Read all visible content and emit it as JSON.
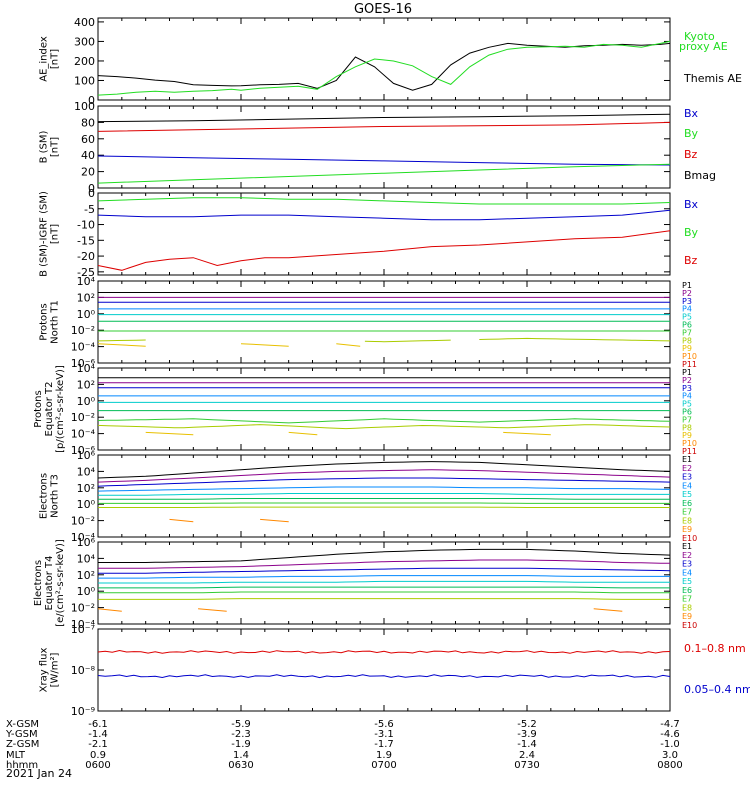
{
  "title": "GOES-16",
  "date_label": "2021 Jan 24",
  "colors": {
    "black": "#000000",
    "green": "#22dd22",
    "blue": "#0000cc",
    "red": "#dd0000",
    "P": [
      "#000000",
      "#8b008b",
      "#0000cc",
      "#0088ff",
      "#00cccc",
      "#00bb55",
      "#33cc33",
      "#aacc00",
      "#e8c000",
      "#ff8800",
      "#cc0000"
    ],
    "E": [
      "#000000",
      "#8b008b",
      "#0000cc",
      "#0088ff",
      "#00cccc",
      "#00bb55",
      "#33cc33",
      "#aacc00",
      "#ff8800",
      "#cc0000"
    ]
  },
  "ephemeris": {
    "row_labels": [
      "X-GSM",
      "Y-GSM",
      "Z-GSM",
      "MLT",
      "hhmm"
    ],
    "columns": [
      [
        "-6.1",
        "-1.4",
        "-2.1",
        "0.9",
        "0600"
      ],
      [
        "-5.9",
        "-2.3",
        "-1.9",
        "1.4",
        "0630"
      ],
      [
        "-5.6",
        "-3.1",
        "-1.7",
        "1.9",
        "0700"
      ],
      [
        "-5.2",
        "-3.9",
        "-1.4",
        "2.4",
        "0730"
      ],
      [
        "-4.7",
        "-4.6",
        "-1.0",
        "3.0",
        "0800"
      ]
    ]
  },
  "chart_data": [
    {
      "type": "line",
      "panel": "ae",
      "ylabel": [
        "AE_index",
        "[nT]"
      ],
      "ylim": [
        0,
        420
      ],
      "yticks": [
        "0",
        "100",
        "200",
        "300",
        "400"
      ],
      "ytick_values": [
        0,
        100,
        200,
        300,
        400
      ],
      "series": [
        {
          "name": "Themis AE",
          "color": "#000000",
          "x": [
            0,
            4,
            8,
            12,
            16,
            20,
            24,
            28,
            30,
            34,
            38,
            42,
            46,
            50,
            54,
            58,
            62,
            66,
            70,
            74,
            78,
            82,
            86,
            90,
            94,
            98,
            102,
            106,
            110,
            114,
            118,
            120
          ],
          "y": [
            125,
            120,
            112,
            102,
            95,
            78,
            75,
            72,
            73,
            78,
            80,
            85,
            60,
            100,
            220,
            170,
            85,
            50,
            80,
            180,
            240,
            270,
            290,
            280,
            275,
            270,
            278,
            280,
            285,
            280,
            285,
            290
          ]
        },
        {
          "name": "Kyoto proxy AE",
          "color": "#22dd22",
          "x": [
            0,
            4,
            8,
            12,
            16,
            20,
            24,
            28,
            30,
            34,
            38,
            42,
            46,
            50,
            54,
            58,
            62,
            66,
            70,
            74,
            78,
            82,
            86,
            90,
            94,
            98,
            102,
            106,
            110,
            114,
            118,
            120
          ],
          "y": [
            25,
            30,
            40,
            45,
            40,
            45,
            48,
            55,
            50,
            60,
            65,
            70,
            55,
            120,
            170,
            210,
            200,
            175,
            120,
            80,
            170,
            230,
            260,
            270,
            272,
            275,
            270,
            285,
            280,
            270,
            290,
            300
          ]
        }
      ]
    },
    {
      "type": "line",
      "panel": "bsm",
      "ylabel": [
        "B (SM)",
        "[nT]"
      ],
      "ylim": [
        0,
        100
      ],
      "yticks": [
        "0",
        "20",
        "40",
        "60",
        "80",
        "100"
      ],
      "ytick_values": [
        0,
        20,
        40,
        60,
        80,
        100
      ],
      "series": [
        {
          "name": "Bx",
          "color": "#0000cc",
          "x": [
            0,
            20,
            40,
            60,
            80,
            100,
            120
          ],
          "y": [
            39,
            37,
            35,
            33,
            31,
            29,
            28
          ]
        },
        {
          "name": "By",
          "color": "#22dd22",
          "x": [
            0,
            20,
            40,
            60,
            80,
            100,
            120
          ],
          "y": [
            6,
            10,
            14,
            18,
            22,
            26,
            29
          ]
        },
        {
          "name": "Bz",
          "color": "#dd0000",
          "x": [
            0,
            20,
            40,
            60,
            80,
            100,
            120
          ],
          "y": [
            69,
            71,
            73,
            75,
            76,
            77,
            80
          ]
        },
        {
          "name": "Bmag",
          "color": "#000000",
          "x": [
            0,
            20,
            40,
            60,
            80,
            100,
            120
          ],
          "y": [
            81,
            82,
            84,
            86,
            87,
            88,
            90
          ]
        }
      ]
    },
    {
      "type": "line",
      "panel": "bigrf",
      "ylabel": [
        "B (SM)-IGRF (SM)",
        "[nT]"
      ],
      "ylim": [
        -26,
        0
      ],
      "yticks": [
        "-25",
        "-20",
        "-15",
        "-10",
        "-5",
        "0"
      ],
      "ytick_values": [
        -25,
        -20,
        -15,
        -10,
        -5,
        0
      ],
      "series": [
        {
          "name": "Bx",
          "color": "#0000cc",
          "x": [
            0,
            10,
            20,
            30,
            40,
            50,
            60,
            70,
            80,
            90,
            100,
            110,
            120
          ],
          "y": [
            -7,
            -7.5,
            -7.5,
            -7,
            -7,
            -7.5,
            -8,
            -8.5,
            -8.5,
            -8,
            -7.5,
            -7,
            -5.5
          ]
        },
        {
          "name": "By",
          "color": "#22dd22",
          "x": [
            0,
            10,
            20,
            30,
            40,
            50,
            60,
            70,
            80,
            90,
            100,
            110,
            120
          ],
          "y": [
            -2.5,
            -2,
            -1.5,
            -1.5,
            -2,
            -2,
            -2.5,
            -3,
            -3.5,
            -3.5,
            -3.5,
            -3.5,
            -3
          ]
        },
        {
          "name": "Bz",
          "color": "#dd0000",
          "x": [
            0,
            5,
            10,
            15,
            20,
            25,
            30,
            35,
            40,
            50,
            60,
            70,
            80,
            90,
            100,
            110,
            120
          ],
          "y": [
            -23,
            -24.5,
            -22,
            -21,
            -20.5,
            -23,
            -21.5,
            -20.5,
            -20.5,
            -19.5,
            -18.5,
            -17,
            -16.5,
            -15.5,
            -14.5,
            -14,
            -12
          ]
        }
      ]
    },
    {
      "type": "line",
      "panel": "protons1",
      "log": true,
      "ylabel": [
        "Protons",
        "North T1"
      ],
      "ylim": [
        -6,
        4
      ],
      "yticks": [
        "10⁻⁶",
        "10⁻⁴",
        "10⁻²",
        "10⁰",
        "10²",
        "10⁴"
      ],
      "ytick_values": [
        -6,
        -4,
        -2,
        0,
        2,
        4
      ],
      "legend": [
        "P1",
        "P2",
        "P3",
        "P4",
        "P5",
        "P6",
        "P7",
        "P8",
        "P9",
        "P10",
        "P11"
      ],
      "series": [
        {
          "name": "P1",
          "levels": [
            2.6,
            2.6
          ]
        },
        {
          "name": "P2",
          "levels": [
            2.0,
            2.0
          ]
        },
        {
          "name": "P3",
          "levels": [
            1.4,
            1.4
          ]
        },
        {
          "name": "P4",
          "levels": [
            0.6,
            0.6
          ]
        },
        {
          "name": "P5",
          "levels": [
            -0.1,
            -0.1
          ]
        },
        {
          "name": "P6",
          "levels": [
            -0.9,
            -0.9
          ]
        },
        {
          "name": "P7",
          "levels": [
            -2.1,
            -2.1
          ]
        },
        {
          "name": "P8",
          "levels": [
            -3.3,
            -3.0,
            -3.4,
            -3.0,
            -3.3
          ],
          "gaps": [
            [
              10,
              55
            ],
            [
              75,
              80
            ]
          ]
        },
        {
          "name": "P9",
          "levels": [
            -3.8,
            -3.8
          ],
          "segments": [
            [
              0,
              10
            ],
            [
              30,
              40
            ],
            [
              50,
              55
            ]
          ]
        }
      ]
    },
    {
      "type": "line",
      "panel": "protons2",
      "log": true,
      "ylabel": [
        "Protons",
        "Equator T2",
        "[p/(cm²-s-sr-keV)]"
      ],
      "ylim": [
        -6,
        4
      ],
      "yticks": [
        "10⁻⁶",
        "10⁻⁴",
        "10⁻²",
        "10⁰",
        "10²",
        "10⁴"
      ],
      "ytick_values": [
        -6,
        -4,
        -2,
        0,
        2,
        4
      ],
      "legend": [
        "P1",
        "P2",
        "P3",
        "P4",
        "P5",
        "P6",
        "P7",
        "P8",
        "P9",
        "P10",
        "P11"
      ],
      "series": [
        {
          "name": "P1",
          "levels": [
            2.8,
            2.8
          ]
        },
        {
          "name": "P2",
          "levels": [
            2.2,
            2.2
          ]
        },
        {
          "name": "P3",
          "levels": [
            1.6,
            1.6
          ]
        },
        {
          "name": "P4",
          "levels": [
            0.6,
            0.6
          ]
        },
        {
          "name": "P5",
          "levels": [
            -0.2,
            -0.2
          ]
        },
        {
          "name": "P6",
          "levels": [
            -1.2,
            -1.2
          ]
        },
        {
          "name": "P7",
          "levels": [
            -2.4,
            -2.2,
            -2.7,
            -2.2,
            -2.6,
            -2.2,
            -2.5
          ]
        },
        {
          "name": "P8",
          "levels": [
            -3.0,
            -3.3,
            -2.9,
            -3.4,
            -3.0,
            -3.3,
            -2.9,
            -3.2
          ]
        },
        {
          "name": "P9",
          "levels": [
            -4.0,
            -4.0
          ],
          "segments": [
            [
              10,
              20
            ],
            [
              40,
              46
            ],
            [
              85,
              95
            ]
          ]
        }
      ]
    },
    {
      "type": "line",
      "panel": "electrons1",
      "log": true,
      "ylabel": [
        "Electrons",
        "North T3"
      ],
      "ylim": [
        -4,
        6
      ],
      "yticks": [
        "10⁻⁴",
        "10⁻²",
        "10⁰",
        "10²",
        "10⁴",
        "10⁶"
      ],
      "ytick_values": [
        -4,
        -2,
        0,
        2,
        4,
        6
      ],
      "legend": [
        "E1",
        "E2",
        "E3",
        "E4",
        "E5",
        "E6",
        "E7",
        "E8",
        "E9",
        "E10"
      ],
      "series": [
        {
          "name": "E1",
          "levels": [
            3.2,
            3.4,
            3.8,
            4.2,
            4.6,
            4.9,
            5.1,
            5.2,
            5.1,
            4.8,
            4.5,
            4.2,
            4.0
          ]
        },
        {
          "name": "E2",
          "levels": [
            2.7,
            2.9,
            3.2,
            3.5,
            3.8,
            4.0,
            4.1,
            4.2,
            4.1,
            3.9,
            3.7,
            3.5,
            3.3
          ]
        },
        {
          "name": "E3",
          "levels": [
            2.2,
            2.4,
            2.6,
            2.8,
            3.0,
            3.1,
            3.2,
            3.2,
            3.1,
            3.0,
            2.9,
            2.8,
            2.7
          ]
        },
        {
          "name": "E4",
          "levels": [
            1.6,
            1.7,
            1.8,
            1.9,
            2.0,
            2.1,
            2.1,
            2.1,
            2.0,
            2.0,
            1.9,
            1.9,
            1.8
          ]
        },
        {
          "name": "E5",
          "levels": [
            1.1,
            1.1,
            1.2,
            1.2,
            1.3,
            1.3,
            1.3,
            1.3,
            1.3,
            1.2,
            1.2,
            1.2,
            1.2
          ]
        },
        {
          "name": "E6",
          "levels": [
            0.6,
            0.6,
            0.6,
            0.7,
            0.7,
            0.7,
            0.7,
            0.7,
            0.7,
            0.7,
            0.6,
            0.6,
            0.6
          ]
        },
        {
          "name": "E7",
          "levels": [
            0.1,
            0.1,
            0.1,
            0.15,
            0.15,
            0.15,
            0.15,
            0.15,
            0.15,
            0.1,
            0.1,
            0.1,
            0.1
          ]
        },
        {
          "name": "E8",
          "levels": [
            -0.4,
            -0.4,
            -0.4,
            -0.35,
            -0.35,
            -0.35,
            -0.35,
            -0.35,
            -0.35,
            -0.4,
            -0.4,
            -0.4,
            -0.4
          ]
        },
        {
          "name": "E9",
          "levels": [
            -2.0,
            -2.0
          ],
          "segments": [
            [
              15,
              20
            ],
            [
              34,
              40
            ]
          ]
        }
      ]
    },
    {
      "type": "line",
      "panel": "electrons2",
      "log": true,
      "ylabel": [
        "Electrons",
        "Equator T4",
        "[e/(cm²-s-sr-keV)]"
      ],
      "ylim": [
        -4,
        6
      ],
      "yticks": [
        "10⁻⁴",
        "10⁻²",
        "10⁰",
        "10²",
        "10⁴",
        "10⁶"
      ],
      "ytick_values": [
        -4,
        -2,
        0,
        2,
        4,
        6
      ],
      "legend": [
        "E1",
        "E2",
        "E3",
        "E4",
        "E5",
        "E6",
        "E7",
        "E8",
        "E9",
        "E10"
      ],
      "series": [
        {
          "name": "E1",
          "levels": [
            3.5,
            3.5,
            3.6,
            3.7,
            4.1,
            4.5,
            4.8,
            5.0,
            5.1,
            5.1,
            4.9,
            4.6,
            4.4
          ]
        },
        {
          "name": "E2",
          "levels": [
            2.8,
            2.8,
            2.9,
            3.0,
            3.2,
            3.4,
            3.6,
            3.7,
            3.8,
            3.8,
            3.7,
            3.5,
            3.4
          ]
        },
        {
          "name": "E3",
          "levels": [
            2.2,
            2.2,
            2.3,
            2.4,
            2.5,
            2.6,
            2.7,
            2.8,
            2.8,
            2.8,
            2.7,
            2.6,
            2.5
          ]
        },
        {
          "name": "E4",
          "levels": [
            1.6,
            1.6,
            1.7,
            1.7,
            1.8,
            1.8,
            1.9,
            1.9,
            1.9,
            1.9,
            1.8,
            1.8,
            1.8
          ]
        },
        {
          "name": "E5",
          "levels": [
            1.0,
            1.0,
            1.0,
            1.1,
            1.1,
            1.1,
            1.2,
            1.2,
            1.2,
            1.2,
            1.1,
            1.1,
            1.1
          ]
        },
        {
          "name": "E6",
          "levels": [
            0.4,
            0.4,
            0.4,
            0.5,
            0.5,
            0.5,
            0.5,
            0.5,
            0.5,
            0.5,
            0.5,
            0.4,
            0.4
          ]
        },
        {
          "name": "E7",
          "levels": [
            -0.2,
            -0.2,
            -0.2,
            -0.1,
            -0.1,
            -0.1,
            -0.1,
            -0.1,
            -0.1,
            -0.1,
            -0.1,
            -0.2,
            -0.2
          ]
        },
        {
          "name": "E8",
          "levels": [
            -1.0,
            -1.0,
            -1.0,
            -0.9,
            -0.9,
            -0.9,
            -0.9,
            -0.9,
            -0.9,
            -0.9,
            -0.9,
            -1.0,
            -1.0
          ]
        },
        {
          "name": "E9",
          "levels": [
            -2.3,
            -2.3
          ],
          "segments": [
            [
              0,
              5
            ],
            [
              21,
              27
            ],
            [
              104,
              110
            ]
          ]
        }
      ]
    },
    {
      "type": "line",
      "panel": "xray",
      "log": true,
      "ylabel": [
        "Xray flux",
        "[W/m²]"
      ],
      "ylim": [
        -9,
        -7
      ],
      "yticks": [
        "10⁻⁹",
        "10⁻⁸",
        "10⁻⁷"
      ],
      "ytick_values": [
        -9,
        -8,
        -7
      ],
      "series": [
        {
          "name": "0.1–0.8 nm",
          "color": "#dd0000",
          "level": -7.56
        },
        {
          "name": "0.05–0.4 nm",
          "color": "#0000cc",
          "level": -8.15
        }
      ]
    }
  ]
}
